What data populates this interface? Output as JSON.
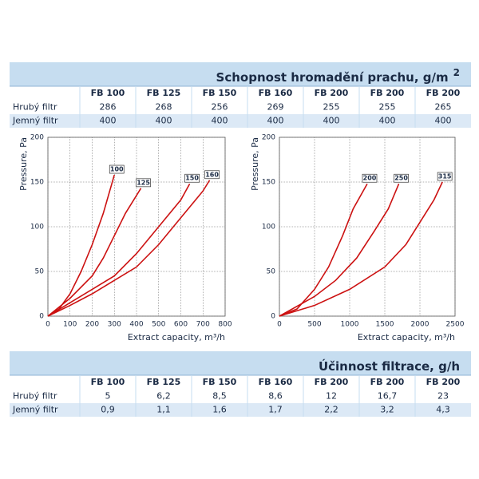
{
  "tables": [
    {
      "title": "Schopnost hromadění prachu, g/m",
      "title_superscript": "2",
      "columns": [
        "FB 100",
        "FB 125",
        "FB 150",
        "FB 160",
        "FB 200",
        "FB 200",
        "FB 200"
      ],
      "rows": [
        {
          "label": "Hrubý filtr",
          "values": [
            "286",
            "268",
            "256",
            "269",
            "255",
            "255",
            "265"
          ]
        },
        {
          "label": "Jemný filtr",
          "values": [
            "400",
            "400",
            "400",
            "400",
            "400",
            "400",
            "400"
          ]
        }
      ]
    },
    {
      "title": "Účinnost filtrace, g/h",
      "columns": [
        "FB 100",
        "FB 125",
        "FB 150",
        "FB 160",
        "FB 200",
        "FB 200",
        "FB 200"
      ],
      "rows": [
        {
          "label": "Hrubý filtr",
          "values": [
            "5",
            "6,2",
            "8,5",
            "8,6",
            "12",
            "16,7",
            "23"
          ]
        },
        {
          "label": "Jemný filtr",
          "values": [
            "0,9",
            "1,1",
            "1,6",
            "1,7",
            "2,2",
            "3,2",
            "4,3"
          ]
        }
      ]
    }
  ],
  "chart_data": [
    {
      "type": "line",
      "x_label": "Extract capacity, m³/h",
      "y_label": "Pressure, Pa",
      "xlim": [
        0,
        800
      ],
      "xticks": [
        0,
        100,
        200,
        300,
        400,
        500,
        600,
        700,
        800
      ],
      "ylim": [
        0,
        200
      ],
      "yticks": [
        0,
        50,
        100,
        150,
        200
      ],
      "grid": true,
      "series": [
        {
          "name": "100",
          "color": "#cc1111",
          "x": [
            0,
            50,
            100,
            150,
            200,
            250,
            300
          ],
          "values": [
            0,
            8,
            25,
            50,
            80,
            115,
            158
          ]
        },
        {
          "name": "125",
          "color": "#cc1111",
          "x": [
            0,
            100,
            200,
            250,
            300,
            350,
            420
          ],
          "values": [
            0,
            20,
            45,
            65,
            90,
            115,
            143
          ]
        },
        {
          "name": "150",
          "color": "#cc1111",
          "x": [
            0,
            100,
            200,
            300,
            400,
            500,
            600,
            640
          ],
          "values": [
            0,
            15,
            30,
            45,
            70,
            100,
            130,
            148
          ]
        },
        {
          "name": "160",
          "color": "#cc1111",
          "x": [
            0,
            100,
            200,
            300,
            400,
            500,
            600,
            700,
            730
          ],
          "values": [
            0,
            12,
            25,
            40,
            55,
            80,
            110,
            140,
            152
          ]
        }
      ]
    },
    {
      "type": "line",
      "x_label": "Extract capacity, m³/h",
      "y_label": "Pressure, Pa",
      "xlim": [
        0,
        2500
      ],
      "xticks": [
        0,
        500,
        1000,
        1500,
        2000,
        2500
      ],
      "ylim": [
        0,
        200
      ],
      "yticks": [
        0,
        50,
        100,
        150,
        200
      ],
      "grid": true,
      "series": [
        {
          "name": "200",
          "color": "#cc1111",
          "x": [
            0,
            250,
            500,
            700,
            900,
            1050,
            1250
          ],
          "values": [
            0,
            8,
            30,
            55,
            90,
            120,
            148
          ]
        },
        {
          "name": "250",
          "color": "#cc1111",
          "x": [
            0,
            500,
            800,
            1100,
            1350,
            1550,
            1700
          ],
          "values": [
            0,
            22,
            40,
            65,
            95,
            120,
            148
          ]
        },
        {
          "name": "315",
          "color": "#cc1111",
          "x": [
            0,
            500,
            1000,
            1500,
            1800,
            2000,
            2200,
            2320
          ],
          "values": [
            0,
            12,
            30,
            55,
            80,
            105,
            130,
            150
          ]
        }
      ]
    }
  ]
}
